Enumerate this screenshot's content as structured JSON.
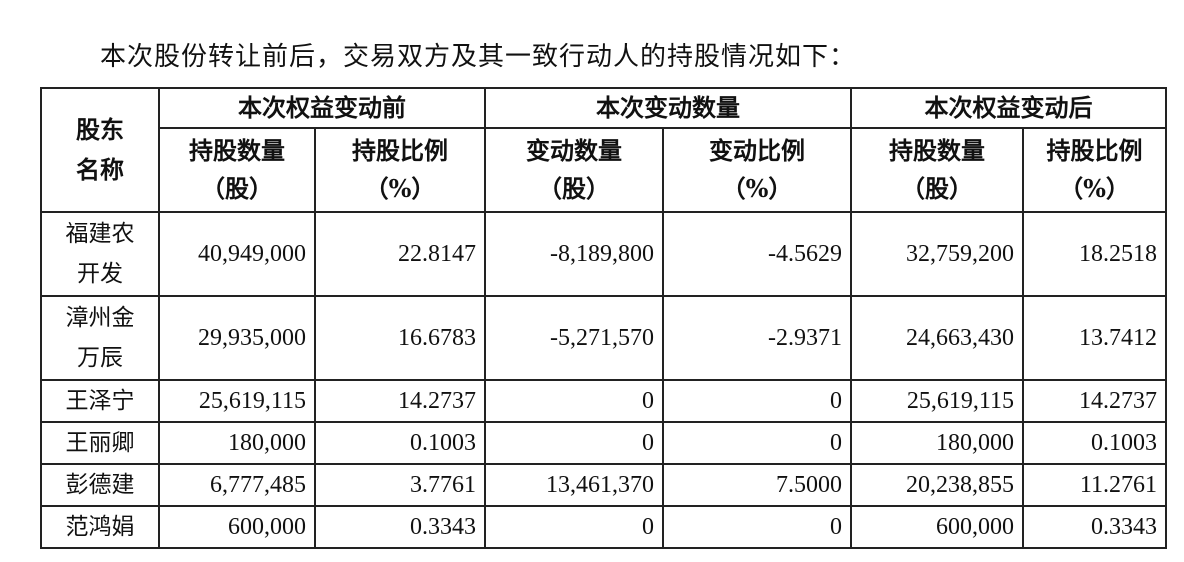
{
  "intro": "本次股份转让前后，交易双方及其一致行动人的持股情况如下：",
  "header": {
    "name_col": "股东名称",
    "groups": [
      "本次权益变动前",
      "本次变动数量",
      "本次权益变动后"
    ],
    "sub": [
      "持股数量（股）",
      "持股比例（%）",
      "变动数量（股）",
      "变动比例（%）",
      "持股数量（股）",
      "持股比例（%）"
    ]
  },
  "rows": [
    {
      "name": "福建农开发",
      "values": [
        "40,949,000",
        "22.8147",
        "-8,189,800",
        "-4.5629",
        "32,759,200",
        "18.2518"
      ]
    },
    {
      "name": "漳州金万辰",
      "values": [
        "29,935,000",
        "16.6783",
        "-5,271,570",
        "-2.9371",
        "24,663,430",
        "13.7412"
      ]
    },
    {
      "name": "王泽宁",
      "values": [
        "25,619,115",
        "14.2737",
        "0",
        "0",
        "25,619,115",
        "14.2737"
      ]
    },
    {
      "name": "王丽卿",
      "values": [
        "180,000",
        "0.1003",
        "0",
        "0",
        "180,000",
        "0.1003"
      ]
    },
    {
      "name": "彭德建",
      "values": [
        "6,777,485",
        "3.7761",
        "13,461,370",
        "7.5000",
        "20,238,855",
        "11.2761"
      ]
    },
    {
      "name": "范鸿娟",
      "values": [
        "600,000",
        "0.3343",
        "0",
        "0",
        "600,000",
        "0.3343"
      ]
    }
  ]
}
